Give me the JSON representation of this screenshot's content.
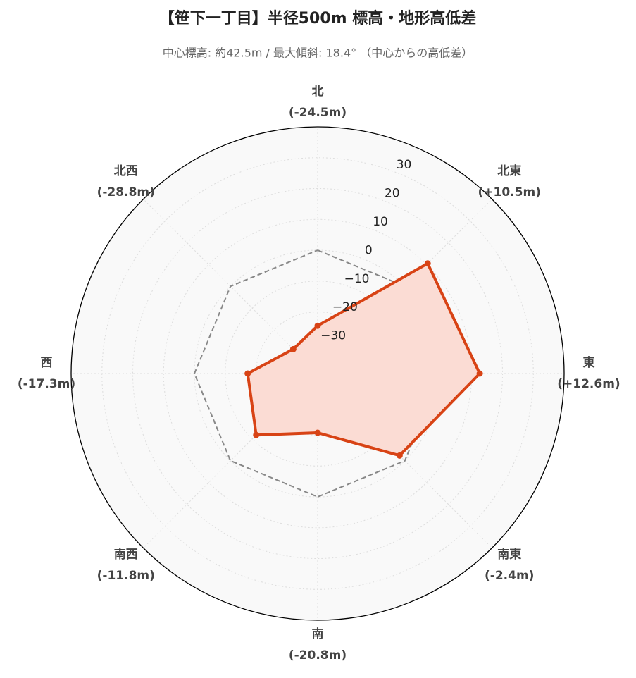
{
  "chart_data": {
    "type": "radar",
    "title": "【笹下一丁目】半径500m 標高・地形高低差",
    "subtitle": "中心標高: 約42.5m / 最大傾斜: 18.4° （中心からの高低差）",
    "categories": [
      "北",
      "北東",
      "東",
      "南東",
      "南",
      "南西",
      "西",
      "北西"
    ],
    "values": [
      -24.5,
      10.5,
      12.6,
      -2.4,
      -20.8,
      -11.8,
      -17.3,
      -28.8
    ],
    "value_labels": [
      "(-24.5m)",
      "(+10.5m)",
      "(+12.6m)",
      "(-2.4m)",
      "(-20.8m)",
      "(-11.8m)",
      "(-17.3m)",
      "(-28.8m)"
    ],
    "reference": 0,
    "color": "#d84315",
    "fill": "#fbdcd4",
    "ylim": [
      -40,
      40
    ],
    "yticks": [
      {
        "value": -30,
        "label": "−30"
      },
      {
        "value": -20,
        "label": "−20"
      },
      {
        "value": -10,
        "label": "−10"
      },
      0,
      10,
      20,
      30
    ],
    "grid": true
  }
}
